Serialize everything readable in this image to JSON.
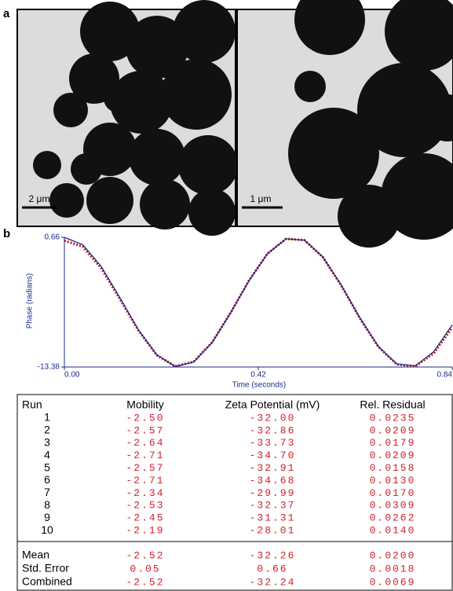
{
  "figure": {
    "panel_a_label": "a",
    "scale_bars": [
      "2 μm",
      "1 μm"
    ],
    "panel_b_label": "b"
  },
  "chart_data": {
    "type": "line",
    "ylabel": "Phase (radians)",
    "xlabel": "Time (seconds)",
    "x": [
      0,
      0.04,
      0.08,
      0.12,
      0.16,
      0.2,
      0.24,
      0.28,
      0.32,
      0.36,
      0.4,
      0.44,
      0.48,
      0.52,
      0.56,
      0.6,
      0.64,
      0.68,
      0.72,
      0.76,
      0.8,
      0.84
    ],
    "series": [
      {
        "color": "#c0141c",
        "values": [
          0.3,
          -0.35,
          -2.7,
          -6.0,
          -9.4,
          -12.1,
          -13.3,
          -12.8,
          -10.7,
          -7.5,
          -4.0,
          -1.1,
          0.5,
          0.35,
          -1.5,
          -4.6,
          -8.1,
          -11.2,
          -13.1,
          -13.3,
          -11.9,
          -9.1
        ]
      },
      {
        "color": "#1c2a8c",
        "values": [
          0.66,
          -0.14,
          -2.51,
          -5.85,
          -9.32,
          -12.04,
          -13.33,
          -12.85,
          -10.75,
          -7.53,
          -4.02,
          -1.1,
          0.5,
          0.36,
          -1.47,
          -4.53,
          -8.06,
          -11.15,
          -13.05,
          -13.25,
          -11.72,
          -8.82
        ]
      }
    ],
    "xlim": [
      0,
      0.84
    ],
    "ylim": [
      -13.38,
      0.66
    ],
    "xticks": [
      {
        "value": 0,
        "label": "0.00"
      },
      0.42,
      0.84
    ],
    "yticks": [
      -13.38,
      0.66
    ]
  },
  "table": {
    "headers": [
      "Run",
      "Mobility",
      "Zeta Potential (mV)",
      "Rel. Residual"
    ],
    "rows": [
      [
        "1",
        "-2.50",
        "-32.00",
        "0.0235"
      ],
      [
        "2",
        "-2.57",
        "-32.86",
        "0.0209"
      ],
      [
        "3",
        "-2.64",
        "-33.73",
        "0.0179"
      ],
      [
        "4",
        "-2.71",
        "-34.70",
        "0.0209"
      ],
      [
        "5",
        "-2.57",
        "-32.91",
        "0.0158"
      ],
      [
        "6",
        "-2.71",
        "-34.68",
        "0.0130"
      ],
      [
        "7",
        "-2.34",
        "-29.99",
        "0.0170"
      ],
      [
        "8",
        "-2.53",
        "-32.37",
        "0.0309"
      ],
      [
        "9",
        "-2.45",
        "-31.31",
        "0.0262"
      ],
      [
        "10",
        "-2.19",
        "-28.01",
        "0.0140"
      ]
    ],
    "summary": [
      [
        "Mean",
        "-2.52",
        "-32.26",
        "0.0200"
      ],
      [
        "Std. Error",
        "0.05",
        "0.66",
        "0.0018"
      ],
      [
        "Combined",
        "-2.52",
        "-32.24",
        "0.0069"
      ]
    ]
  }
}
